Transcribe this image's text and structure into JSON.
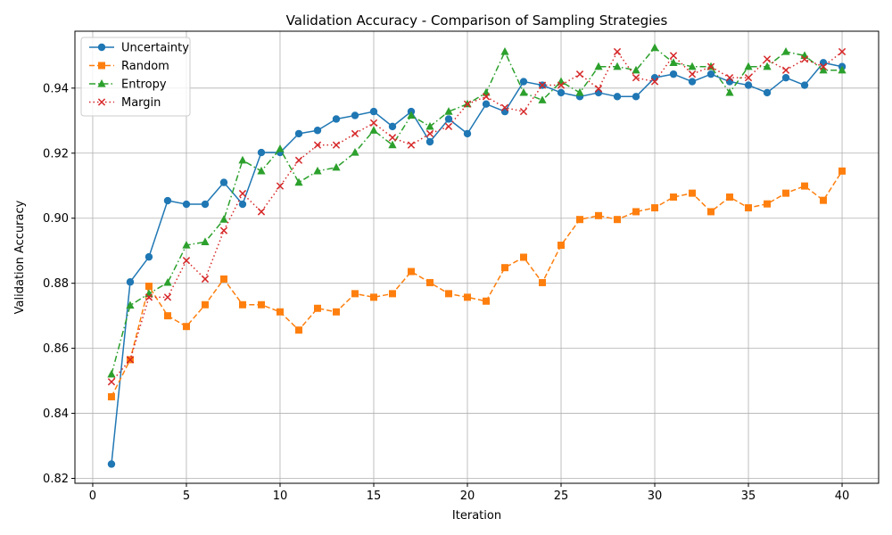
{
  "chart_data": {
    "type": "line",
    "title": "Validation Accuracy - Comparison of Sampling Strategies",
    "xlabel": "Iteration",
    "ylabel": "Validation Accuracy",
    "xlim": [
      -0.95,
      41.95
    ],
    "ylim": [
      0.8185,
      0.9575
    ],
    "xticks": [
      0,
      5,
      10,
      15,
      20,
      25,
      30,
      35,
      40
    ],
    "yticks": [
      0.82,
      0.84,
      0.86,
      0.88,
      0.9,
      0.92,
      0.94
    ],
    "ytick_labels": [
      "0.82",
      "0.84",
      "0.86",
      "0.88",
      "0.90",
      "0.92",
      "0.94"
    ],
    "grid": true,
    "legend_position": "top-left",
    "x": [
      1,
      2,
      3,
      4,
      5,
      6,
      7,
      8,
      9,
      10,
      11,
      12,
      13,
      14,
      15,
      16,
      17,
      18,
      19,
      20,
      21,
      22,
      23,
      24,
      25,
      26,
      27,
      28,
      29,
      30,
      31,
      32,
      33,
      34,
      35,
      36,
      37,
      38,
      39,
      40
    ],
    "series": [
      {
        "name": "Uncertainty",
        "color": "#1f77b4",
        "linestyle": "solid",
        "marker": "circle",
        "values": [
          0.8244,
          0.8804,
          0.8881,
          0.9054,
          0.9043,
          0.9043,
          0.911,
          0.9043,
          0.9202,
          0.9202,
          0.926,
          0.927,
          0.9305,
          0.9316,
          0.9328,
          0.9282,
          0.9328,
          0.9235,
          0.9305,
          0.926,
          0.9351,
          0.9328,
          0.942,
          0.9409,
          0.9386,
          0.9374,
          0.9386,
          0.9374,
          0.9374,
          0.9432,
          0.9443,
          0.942,
          0.9443,
          0.942,
          0.9409,
          0.9386,
          0.9432,
          0.9409,
          0.9478,
          0.9466
        ]
      },
      {
        "name": "Random",
        "color": "#ff7f0e",
        "linestyle": "dashed",
        "marker": "square",
        "values": [
          0.8451,
          0.8565,
          0.8791,
          0.87,
          0.8667,
          0.8734,
          0.8813,
          0.8734,
          0.8734,
          0.8712,
          0.8656,
          0.8723,
          0.8712,
          0.8768,
          0.8757,
          0.8768,
          0.8836,
          0.8802,
          0.8768,
          0.8757,
          0.8745,
          0.8848,
          0.888,
          0.8802,
          0.8917,
          0.8996,
          0.9008,
          0.8996,
          0.902,
          0.9032,
          0.9065,
          0.9077,
          0.902,
          0.9065,
          0.9032,
          0.9044,
          0.9077,
          0.9099,
          0.9055,
          0.9145
        ]
      },
      {
        "name": "Entropy",
        "color": "#2ca02c",
        "linestyle": "dashdot",
        "marker": "triangle",
        "values": [
          0.852,
          0.8732,
          0.8768,
          0.8802,
          0.8917,
          0.8927,
          0.8996,
          0.9178,
          0.9145,
          0.9213,
          0.911,
          0.9145,
          0.9156,
          0.9202,
          0.927,
          0.9225,
          0.9316,
          0.9282,
          0.9328,
          0.9351,
          0.9386,
          0.9512,
          0.9386,
          0.9363,
          0.942,
          0.9386,
          0.9466,
          0.9466,
          0.9455,
          0.9524,
          0.9478,
          0.9466,
          0.9466,
          0.9386,
          0.9466,
          0.9466,
          0.9512,
          0.95,
          0.9455,
          0.9455
        ]
      },
      {
        "name": "Margin",
        "color": "#d62728",
        "linestyle": "dotted",
        "marker": "x",
        "values": [
          0.8497,
          0.8565,
          0.8757,
          0.8757,
          0.887,
          0.8813,
          0.8962,
          0.9076,
          0.902,
          0.9099,
          0.9178,
          0.9225,
          0.9225,
          0.926,
          0.9293,
          0.9248,
          0.9225,
          0.926,
          0.9282,
          0.9351,
          0.9374,
          0.934,
          0.9328,
          0.9409,
          0.9409,
          0.9443,
          0.9398,
          0.9512,
          0.9432,
          0.942,
          0.95,
          0.9443,
          0.9466,
          0.9432,
          0.9432,
          0.9489,
          0.9455,
          0.9489,
          0.9466,
          0.9512
        ]
      }
    ]
  }
}
